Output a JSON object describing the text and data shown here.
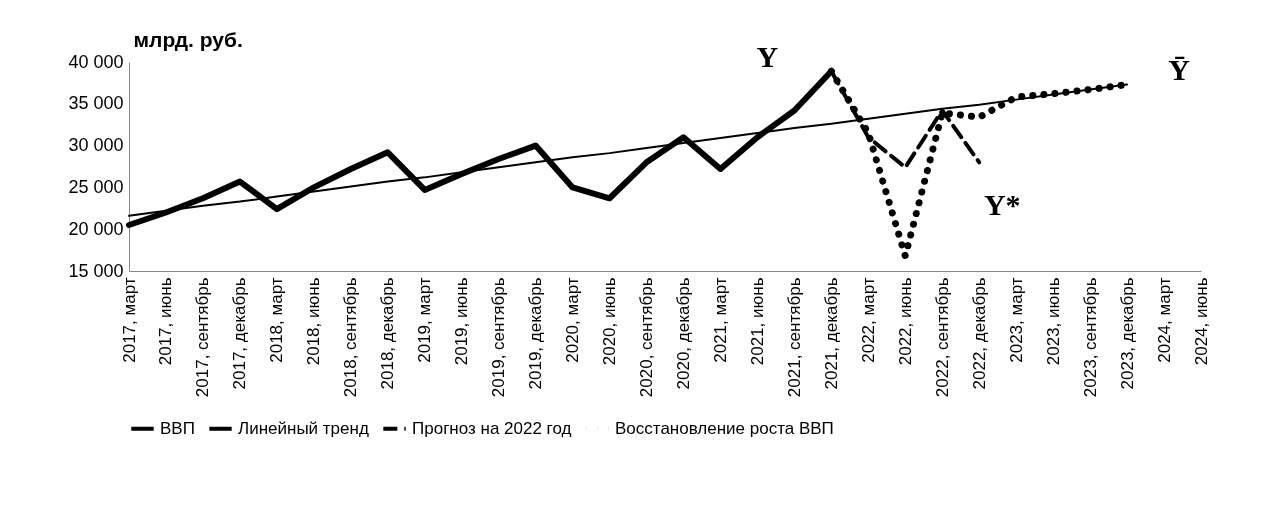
{
  "chart_data": {
    "type": "line",
    "ylabel": "млрд. руб.",
    "categories": [
      "2017, март",
      "2017, июнь",
      "2017, сентябрь",
      "2017, декабрь",
      "2018, март",
      "2018, июнь",
      "2018, сентябрь",
      "2018, декабрь",
      "2019, март",
      "2019, июнь",
      "2019, сентябрь",
      "2019, декабрь",
      "2020, март",
      "2020, июнь",
      "2020, сентябрь",
      "2020, декабрь",
      "2021, март",
      "2021, июнь",
      "2021, сентябрь",
      "2021, декабрь",
      "2022, март",
      "2022, июнь",
      "2022, сентябрь",
      "2022, декабрь",
      "2023, март",
      "2023, июнь",
      "2023, сентябрь",
      "2023, декабрь",
      "2024, март",
      "2024, июнь"
    ],
    "series": [
      {
        "name": "ВВП",
        "color": "#000000",
        "line_style": "solid",
        "values": [
          20500,
          22000,
          23700,
          25700,
          22400,
          25000,
          27200,
          29200,
          24700,
          26600,
          28400,
          30000,
          25000,
          23700,
          28000,
          31000,
          27200,
          31000,
          34200,
          38900,
          null,
          null,
          null,
          null,
          null,
          null,
          null,
          null,
          null,
          null
        ]
      },
      {
        "name": "Линейный тренд",
        "color": "#000000",
        "line_style": "solid",
        "values": [
          21600,
          22200,
          22800,
          23300,
          23900,
          24500,
          25100,
          25700,
          26200,
          26800,
          27400,
          28000,
          28600,
          29100,
          29700,
          30300,
          30900,
          31500,
          32100,
          32600,
          33200,
          33800,
          34400,
          34900,
          35500,
          36100,
          36700,
          37300,
          null,
          null
        ]
      },
      {
        "name": "Прогноз на 2022 год",
        "color": "#000000",
        "line_style": "dashed",
        "values": [
          null,
          null,
          null,
          null,
          null,
          null,
          null,
          null,
          null,
          null,
          null,
          null,
          null,
          null,
          null,
          null,
          null,
          null,
          null,
          38900,
          31000,
          27400,
          34200,
          28000,
          null,
          null,
          null,
          null,
          null,
          null
        ]
      },
      {
        "name": "Восстановление роста ВВП",
        "color": "#000000",
        "line_style": "dotted",
        "values": [
          null,
          null,
          null,
          null,
          null,
          null,
          null,
          null,
          null,
          null,
          null,
          null,
          null,
          null,
          null,
          null,
          null,
          null,
          null,
          38900,
          31500,
          16800,
          33900,
          33400,
          35800,
          36200,
          36700,
          37300,
          null,
          null
        ]
      }
    ],
    "ylim": [
      15000,
      40000
    ],
    "yticks": [
      {
        "value": 15000,
        "label": "15 000"
      },
      {
        "value": 20000,
        "label": "20 000"
      },
      {
        "value": 25000,
        "label": "25 000"
      },
      {
        "value": 30000,
        "label": "30 000"
      },
      {
        "value": 35000,
        "label": "35 000"
      },
      {
        "value": 40000,
        "label": "40 000"
      }
    ],
    "annotations": [
      "Y",
      "Ȳ",
      "Y*"
    ],
    "legend": "bottom",
    "grid": false
  }
}
